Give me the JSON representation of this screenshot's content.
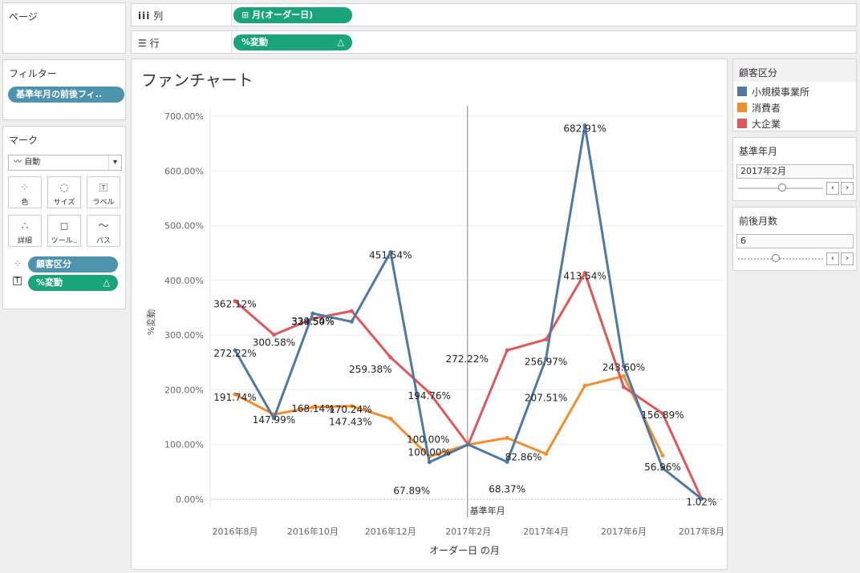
{
  "pages": {
    "title": "ページ"
  },
  "columns": {
    "label": "列",
    "pill": "月(オーダー日)"
  },
  "rows": {
    "label": "行",
    "pill": "%変動",
    "delta": "△"
  },
  "filters": {
    "title": "フィルター",
    "pill": "基準年月の前後フィ.."
  },
  "marks": {
    "title": "マーク",
    "type": "自動",
    "buttons": [
      {
        "label": "色",
        "icon": "color-dots-icon"
      },
      {
        "label": "サイズ",
        "icon": "size-icon"
      },
      {
        "label": "ラベル",
        "icon": "label-icon"
      },
      {
        "label": "詳細",
        "icon": "detail-icon"
      },
      {
        "label": "ツール..",
        "icon": "tooltip-icon"
      },
      {
        "label": "パス",
        "icon": "path-icon"
      }
    ],
    "fields": [
      {
        "label": "顧客区分",
        "delta": ""
      },
      {
        "label": "%変動",
        "delta": "△"
      }
    ]
  },
  "legend": {
    "title": "顧客区分",
    "items": [
      {
        "label": "小規模事業所",
        "color": "#4e79a7"
      },
      {
        "label": "消費者",
        "color": "#f28e2b"
      },
      {
        "label": "大企業",
        "color": "#e15759"
      }
    ]
  },
  "param_base": {
    "title": "基準年月",
    "value": "2017年2月"
  },
  "param_months": {
    "title": "前後月数",
    "value": "6"
  },
  "chart_data": {
    "type": "line",
    "title": "ファンチャート",
    "xlabel": "オーダー日 の月",
    "ylabel": "%変動",
    "categories": [
      "2016年8月",
      "2016年9月",
      "2016年10月",
      "2016年11月",
      "2016年12月",
      "2017年1月",
      "2017年2月",
      "2017年3月",
      "2017年4月",
      "2017年5月",
      "2017年6月",
      "2017年7月",
      "2017年8月"
    ],
    "xtick_labels": [
      "2016年8月",
      "2016年10月",
      "2016年12月",
      "2017年2月",
      "2017年4月",
      "2017年6月",
      "2017年8月"
    ],
    "ylim": [
      0,
      700
    ],
    "yticks": [
      "0.00%",
      "100.00%",
      "200.00%",
      "300.00%",
      "400.00%",
      "500.00%",
      "600.00%",
      "700.00%"
    ],
    "reference_line": {
      "label": "基準年月",
      "category": "2017年2月"
    },
    "series": [
      {
        "name": "小規模事業所",
        "color": "#4e79a7",
        "values": [
          272.22,
          147.99,
          339.54,
          324.5,
          451.54,
          67.89,
          100.0,
          68.37,
          256.97,
          682.91,
          243.6,
          56.96,
          1.02
        ]
      },
      {
        "name": "消費者",
        "color": "#f28e2b",
        "values": [
          191.74,
          155.0,
          168.14,
          170.24,
          147.43,
          78.0,
          100.0,
          112.0,
          82.86,
          207.51,
          225.0,
          80.0,
          null
        ]
      },
      {
        "name": "大企業",
        "color": "#e15759",
        "values": [
          362.12,
          300.58,
          330.0,
          344.0,
          259.38,
          194.76,
          100.0,
          272.22,
          292.0,
          413.54,
          205.0,
          156.89,
          1.02
        ]
      }
    ],
    "data_labels": [
      {
        "text": "362.12%"
      },
      {
        "text": "272.22%"
      },
      {
        "text": "191.74%"
      },
      {
        "text": "300.58%"
      },
      {
        "text": "147.99%"
      },
      {
        "text": "339.54%"
      },
      {
        "text": "324.50%"
      },
      {
        "text": "168.14%"
      },
      {
        "text": "170.24%"
      },
      {
        "text": "147.43%"
      },
      {
        "text": "451.54%"
      },
      {
        "text": "259.38%"
      },
      {
        "text": "194.76%"
      },
      {
        "text": "67.89%"
      },
      {
        "text": "100.00%"
      },
      {
        "text": "100.00%"
      },
      {
        "text": "272.22%"
      },
      {
        "text": "68.37%"
      },
      {
        "text": "256.97%"
      },
      {
        "text": "207.51%"
      },
      {
        "text": "82.86%"
      },
      {
        "text": "682.91%"
      },
      {
        "text": "413.54%"
      },
      {
        "text": "243.60%"
      },
      {
        "text": "156.89%"
      },
      {
        "text": "56.96%"
      },
      {
        "text": "1.02%"
      }
    ]
  }
}
